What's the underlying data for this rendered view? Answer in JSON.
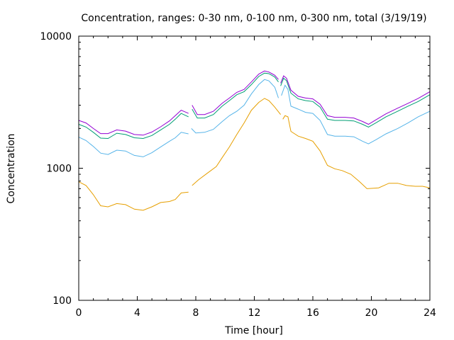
{
  "chart_data": {
    "type": "line",
    "title": "Concentration, ranges: 0-30 nm, 0-100 nm, 0-300 nm, total (3/19/19)",
    "xlabel": "Time [hour]",
    "ylabel": "Concentration",
    "xlim": [
      0,
      24
    ],
    "ylim": [
      100,
      10000
    ],
    "yscale": "log",
    "grid": false,
    "xticks": [
      0,
      4,
      8,
      12,
      16,
      20,
      24
    ],
    "xtick_labels": [
      "0",
      "4",
      "8",
      "12",
      "16",
      "20",
      "24"
    ],
    "yticks": [
      100,
      1000,
      10000
    ],
    "ytick_labels": [
      "100",
      "1000",
      "10000"
    ],
    "series": [
      {
        "color": "#e69f00",
        "segments": [
          [
            [
              0.0,
              790
            ],
            [
              0.5,
              740
            ],
            [
              1.0,
              630
            ],
            [
              1.5,
              520
            ],
            [
              2.0,
              510
            ],
            [
              2.6,
              540
            ],
            [
              3.2,
              530
            ],
            [
              3.8,
              490
            ],
            [
              4.4,
              480
            ],
            [
              5.0,
              510
            ],
            [
              5.6,
              550
            ],
            [
              6.2,
              560
            ],
            [
              6.6,
              580
            ],
            [
              7.0,
              650
            ],
            [
              7.5,
              660
            ]
          ],
          [
            [
              7.75,
              740
            ],
            [
              8.2,
              820
            ],
            [
              8.8,
              920
            ],
            [
              9.4,
              1030
            ],
            [
              9.8,
              1200
            ],
            [
              10.3,
              1450
            ],
            [
              10.8,
              1800
            ],
            [
              11.3,
              2200
            ],
            [
              11.8,
              2750
            ],
            [
              12.3,
              3150
            ],
            [
              12.7,
              3380
            ],
            [
              13.0,
              3250
            ],
            [
              13.4,
              2900
            ],
            [
              13.8,
              2550
            ]
          ],
          [
            [
              13.95,
              2350
            ],
            [
              14.1,
              2500
            ],
            [
              14.3,
              2450
            ],
            [
              14.5,
              1900
            ],
            [
              15.0,
              1750
            ],
            [
              15.5,
              1680
            ],
            [
              16.0,
              1600
            ],
            [
              16.5,
              1350
            ],
            [
              17.0,
              1050
            ],
            [
              17.5,
              990
            ],
            [
              18.0,
              960
            ],
            [
              18.6,
              900
            ],
            [
              19.2,
              790
            ],
            [
              19.7,
              700
            ],
            [
              20.5,
              710
            ],
            [
              21.2,
              770
            ],
            [
              21.8,
              770
            ],
            [
              22.4,
              740
            ],
            [
              23.0,
              730
            ],
            [
              23.5,
              730
            ],
            [
              24.0,
              710
            ]
          ]
        ]
      },
      {
        "color": "#56b4e9",
        "segments": [
          [
            [
              0.0,
              1720
            ],
            [
              0.5,
              1620
            ],
            [
              1.0,
              1460
            ],
            [
              1.5,
              1300
            ],
            [
              2.0,
              1270
            ],
            [
              2.6,
              1370
            ],
            [
              3.2,
              1350
            ],
            [
              3.8,
              1250
            ],
            [
              4.4,
              1220
            ],
            [
              5.0,
              1310
            ],
            [
              5.6,
              1450
            ],
            [
              6.2,
              1600
            ],
            [
              6.6,
              1700
            ],
            [
              7.0,
              1870
            ],
            [
              7.5,
              1820
            ]
          ],
          [
            [
              7.7,
              2000
            ],
            [
              8.0,
              1850
            ],
            [
              8.6,
              1870
            ],
            [
              9.2,
              1970
            ],
            [
              9.8,
              2250
            ],
            [
              10.3,
              2500
            ],
            [
              10.8,
              2700
            ],
            [
              11.3,
              3000
            ],
            [
              11.8,
              3650
            ],
            [
              12.3,
              4300
            ],
            [
              12.7,
              4700
            ],
            [
              13.0,
              4580
            ],
            [
              13.4,
              4100
            ],
            [
              13.65,
              3400
            ]
          ],
          [
            [
              13.85,
              3550
            ],
            [
              14.1,
              4250
            ],
            [
              14.3,
              3950
            ],
            [
              14.5,
              2950
            ],
            [
              15.0,
              2800
            ],
            [
              15.5,
              2650
            ],
            [
              16.0,
              2600
            ],
            [
              16.5,
              2300
            ],
            [
              17.0,
              1800
            ],
            [
              17.5,
              1750
            ],
            [
              18.2,
              1750
            ],
            [
              18.8,
              1730
            ],
            [
              19.4,
              1600
            ],
            [
              19.8,
              1530
            ],
            [
              20.3,
              1640
            ],
            [
              21.0,
              1820
            ],
            [
              21.8,
              2000
            ],
            [
              22.5,
              2200
            ],
            [
              23.2,
              2450
            ],
            [
              24.0,
              2700
            ]
          ]
        ]
      },
      {
        "color": "#009e73",
        "segments": [
          [
            [
              0.0,
              2150
            ],
            [
              0.5,
              2050
            ],
            [
              1.0,
              1870
            ],
            [
              1.5,
              1690
            ],
            [
              2.0,
              1680
            ],
            [
              2.6,
              1840
            ],
            [
              3.2,
              1800
            ],
            [
              3.8,
              1700
            ],
            [
              4.4,
              1680
            ],
            [
              5.0,
              1770
            ],
            [
              5.6,
              1950
            ],
            [
              6.2,
              2150
            ],
            [
              6.6,
              2350
            ],
            [
              7.0,
              2600
            ],
            [
              7.5,
              2450
            ]
          ],
          [
            [
              7.75,
              2800
            ],
            [
              8.1,
              2400
            ],
            [
              8.6,
              2400
            ],
            [
              9.2,
              2550
            ],
            [
              9.8,
              2950
            ],
            [
              10.3,
              3250
            ],
            [
              10.8,
              3600
            ],
            [
              11.3,
              3800
            ],
            [
              11.8,
              4300
            ],
            [
              12.3,
              4950
            ],
            [
              12.7,
              5250
            ],
            [
              13.0,
              5200
            ],
            [
              13.4,
              4900
            ],
            [
              13.65,
              4500
            ]
          ],
          [
            [
              13.8,
              4200
            ],
            [
              14.0,
              4800
            ],
            [
              14.2,
              4600
            ],
            [
              14.5,
              3700
            ],
            [
              15.0,
              3350
            ],
            [
              15.5,
              3250
            ],
            [
              16.0,
              3200
            ],
            [
              16.5,
              2900
            ],
            [
              17.0,
              2350
            ],
            [
              17.5,
              2300
            ],
            [
              18.2,
              2300
            ],
            [
              18.8,
              2280
            ],
            [
              19.4,
              2150
            ],
            [
              19.8,
              2050
            ],
            [
              20.3,
              2200
            ],
            [
              21.0,
              2450
            ],
            [
              21.8,
              2700
            ],
            [
              22.5,
              2950
            ],
            [
              23.2,
              3200
            ],
            [
              24.0,
              3600
            ]
          ]
        ]
      },
      {
        "color": "#9400d3",
        "segments": [
          [
            [
              0.0,
              2300
            ],
            [
              0.5,
              2200
            ],
            [
              1.0,
              2000
            ],
            [
              1.5,
              1830
            ],
            [
              2.0,
              1830
            ],
            [
              2.6,
              1950
            ],
            [
              3.2,
              1910
            ],
            [
              3.8,
              1800
            ],
            [
              4.4,
              1780
            ],
            [
              5.0,
              1880
            ],
            [
              5.6,
              2060
            ],
            [
              6.2,
              2280
            ],
            [
              6.6,
              2500
            ],
            [
              7.0,
              2750
            ],
            [
              7.5,
              2600
            ]
          ],
          [
            [
              7.75,
              3000
            ],
            [
              8.1,
              2550
            ],
            [
              8.6,
              2550
            ],
            [
              9.2,
              2700
            ],
            [
              9.8,
              3100
            ],
            [
              10.3,
              3400
            ],
            [
              10.8,
              3750
            ],
            [
              11.3,
              3950
            ],
            [
              11.8,
              4500
            ],
            [
              12.3,
              5150
            ],
            [
              12.7,
              5450
            ],
            [
              13.0,
              5350
            ],
            [
              13.4,
              5050
            ],
            [
              13.65,
              4700
            ]
          ],
          [
            [
              13.8,
              4400
            ],
            [
              14.0,
              5000
            ],
            [
              14.2,
              4800
            ],
            [
              14.5,
              3900
            ],
            [
              15.0,
              3500
            ],
            [
              15.5,
              3400
            ],
            [
              16.0,
              3350
            ],
            [
              16.5,
              3050
            ],
            [
              17.0,
              2500
            ],
            [
              17.5,
              2430
            ],
            [
              18.2,
              2430
            ],
            [
              18.8,
              2400
            ],
            [
              19.4,
              2260
            ],
            [
              19.8,
              2150
            ],
            [
              20.3,
              2320
            ],
            [
              21.0,
              2580
            ],
            [
              21.8,
              2850
            ],
            [
              22.5,
              3100
            ],
            [
              23.2,
              3380
            ],
            [
              24.0,
              3800
            ]
          ]
        ]
      }
    ]
  }
}
